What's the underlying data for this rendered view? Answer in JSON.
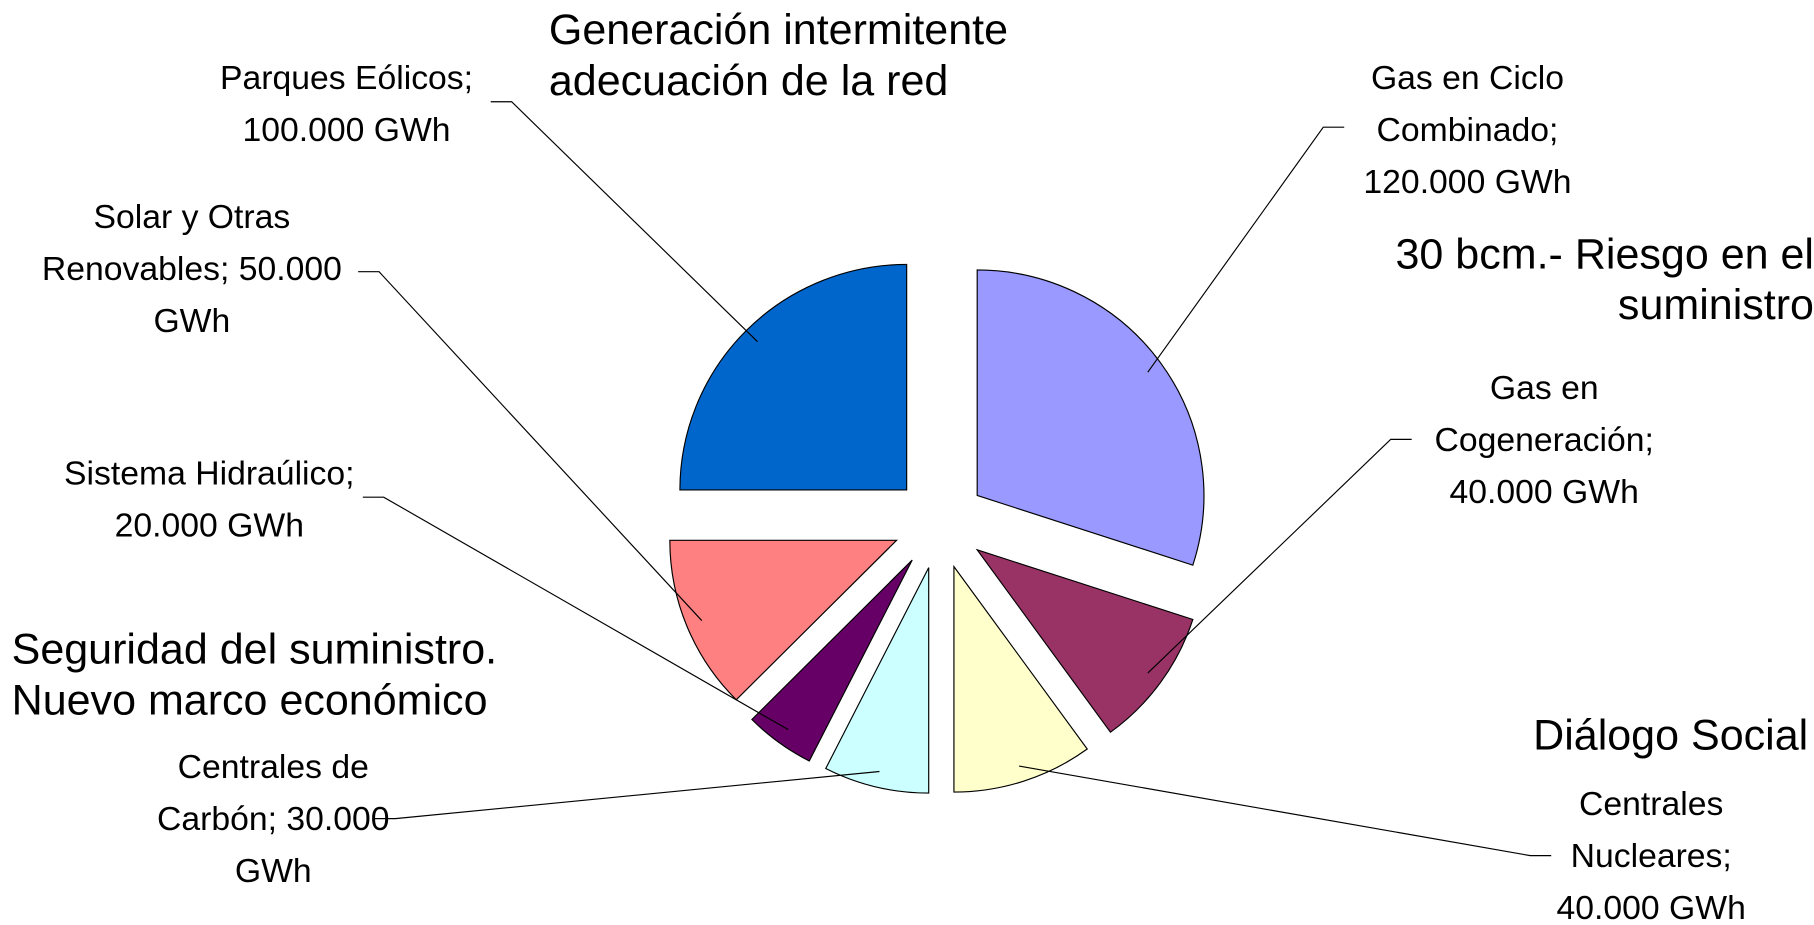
{
  "chart_data": {
    "type": "pie",
    "categories": [
      "Gas en Ciclo Combinado",
      "Gas en Cogeneración",
      "Centrales Nucleares",
      "Centrales de Carbón",
      "Sistema Hidraúlico",
      "Solar y Otras Renovables",
      "Parques Eólicos"
    ],
    "values": [
      120000,
      40000,
      40000,
      30000,
      20000,
      50000,
      100000
    ],
    "value_labels": [
      "120.000 GWh",
      "40.000 GWh",
      "40.000 GWh",
      "30.000 GWh",
      "20.000 GWh",
      "50.000 GWh",
      "100.000 GWh"
    ],
    "label_separator": ";",
    "colors": [
      "#9999ff",
      "#993366",
      "#ffffcc",
      "#ccffff",
      "#660066",
      "#ff8080",
      "#0066cc"
    ],
    "annotations": [
      "Generación intermitente adecuación de la red",
      "30 bcm.- Riesgo en el suministro",
      "Seguridad del suministro. Nuevo marco económico",
      "Diálogo Social"
    ]
  }
}
